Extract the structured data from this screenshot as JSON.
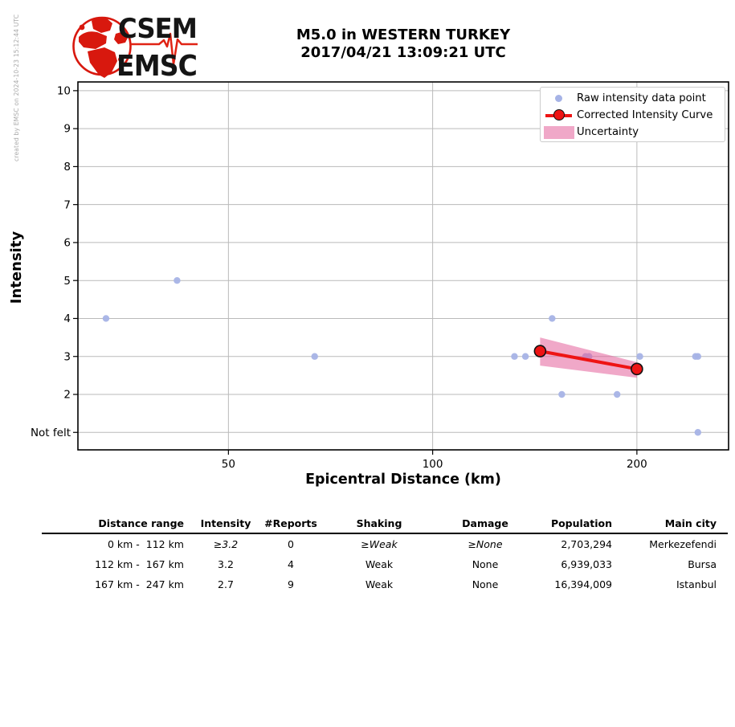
{
  "meta": {
    "credit": "created by EMSC on 2024-10-23 15:12:44 UTC"
  },
  "logo": {
    "top": "CSEM",
    "bottom": "EMSC"
  },
  "title": {
    "line1": "M5.0 in WESTERN TURKEY",
    "line2": "2017/04/21 13:09:21 UTC"
  },
  "colors": {
    "raw_point": "#a6b3e6",
    "curve": "#ee1414",
    "band": "#e4619b",
    "band_opacity": 0.55,
    "grid": "#bababa",
    "logo_red": "#d8180e"
  },
  "legend": [
    {
      "label": "Raw intensity data point",
      "swatch": "dot"
    },
    {
      "label": "Corrected Intensity Curve",
      "swatch": "line-marker"
    },
    {
      "label": "Uncertainty",
      "swatch": "band"
    }
  ],
  "chart_data": {
    "type": "scatter",
    "title": "M5.0 in WESTERN TURKEY 2017/04/21 13:09:21 UTC",
    "xlabel": "Epicentral Distance (km)",
    "ylabel": "Intensity",
    "x_scale": "log",
    "grid": true,
    "legend_position": "upper right",
    "xlim": [
      30,
      273
    ],
    "ylim": [
      0.54,
      10.23
    ],
    "x_ticks": [
      {
        "label": "50",
        "v": 50
      },
      {
        "label": "100",
        "v": 100
      },
      {
        "label": "200",
        "v": 200
      }
    ],
    "y_ticks": [
      {
        "label": "10",
        "v": 10
      },
      {
        "label": "9",
        "v": 9
      },
      {
        "label": "8",
        "v": 8
      },
      {
        "label": "7",
        "v": 7
      },
      {
        "label": "6",
        "v": 6
      },
      {
        "label": "5",
        "v": 5
      },
      {
        "label": "4",
        "v": 4
      },
      {
        "label": "3",
        "v": 3
      },
      {
        "label": "2",
        "v": 2
      },
      {
        "label": "Not felt",
        "v": 1
      }
    ],
    "series": [
      {
        "name": "Raw intensity data point",
        "type": "scatter",
        "points": [
          {
            "km": 33,
            "intensity": 4
          },
          {
            "km": 42,
            "intensity": 5
          },
          {
            "km": 67,
            "intensity": 3
          },
          {
            "km": 132,
            "intensity": 3
          },
          {
            "km": 137,
            "intensity": 3
          },
          {
            "km": 150,
            "intensity": 4
          },
          {
            "km": 155,
            "intensity": 2
          },
          {
            "km": 168,
            "intensity": 3
          },
          {
            "km": 170,
            "intensity": 3
          },
          {
            "km": 187,
            "intensity": 2
          },
          {
            "km": 202,
            "intensity": 3
          },
          {
            "km": 244,
            "intensity": 3
          },
          {
            "km": 246,
            "intensity": 3
          },
          {
            "km": 246,
            "intensity": 1
          }
        ]
      },
      {
        "name": "Corrected Intensity Curve",
        "type": "line",
        "points": [
          {
            "km": 144,
            "intensity": 3.14
          },
          {
            "km": 200,
            "intensity": 2.67
          }
        ]
      },
      {
        "name": "Uncertainty",
        "type": "band",
        "points": [
          {
            "km": 144,
            "upper": 3.5,
            "lower": 2.76
          },
          {
            "km": 200,
            "upper": 2.85,
            "lower": 2.44
          }
        ]
      }
    ]
  },
  "table": {
    "headers": [
      "Distance range",
      "Intensity",
      "#Reports",
      "Shaking",
      "Damage",
      "Population",
      "Main city"
    ],
    "rows": [
      {
        "range": "0 km -  112 km",
        "intensity": "≥3.2",
        "reports": "0",
        "shaking": "≥Weak",
        "damage": "≥None",
        "population": "2,703,294",
        "city": "Merkezefendi"
      },
      {
        "range": "112 km -  167 km",
        "intensity": "3.2",
        "reports": "4",
        "shaking": "Weak",
        "damage": "None",
        "population": "6,939,033",
        "city": "Bursa"
      },
      {
        "range": "167 km -  247 km",
        "intensity": "2.7",
        "reports": "9",
        "shaking": "Weak",
        "damage": "None",
        "population": "16,394,009",
        "city": "Istanbul"
      }
    ]
  }
}
